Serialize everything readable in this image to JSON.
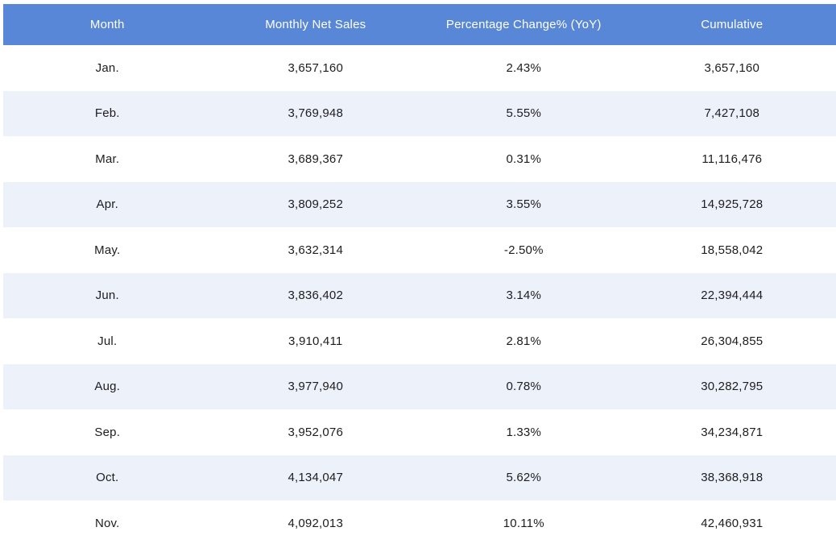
{
  "table": {
    "columns": [
      {
        "label": "Month"
      },
      {
        "label": "Monthly Net Sales"
      },
      {
        "label": "Percentage Change% (YoY)"
      },
      {
        "label": "Cumulative"
      }
    ],
    "rows": [
      {
        "month": "Jan.",
        "net_sales": "3,657,160",
        "pct_change": "2.43%",
        "cumulative": "3,657,160"
      },
      {
        "month": "Feb.",
        "net_sales": "3,769,948",
        "pct_change": "5.55%",
        "cumulative": "7,427,108"
      },
      {
        "month": "Mar.",
        "net_sales": "3,689,367",
        "pct_change": "0.31%",
        "cumulative": "11,116,476"
      },
      {
        "month": "Apr.",
        "net_sales": "3,809,252",
        "pct_change": "3.55%",
        "cumulative": "14,925,728"
      },
      {
        "month": "May.",
        "net_sales": "3,632,314",
        "pct_change": "-2.50%",
        "cumulative": "18,558,042"
      },
      {
        "month": "Jun.",
        "net_sales": "3,836,402",
        "pct_change": "3.14%",
        "cumulative": "22,394,444"
      },
      {
        "month": "Jul.",
        "net_sales": "3,910,411",
        "pct_change": "2.81%",
        "cumulative": "26,304,855"
      },
      {
        "month": "Aug.",
        "net_sales": "3,977,940",
        "pct_change": "0.78%",
        "cumulative": "30,282,795"
      },
      {
        "month": "Sep.",
        "net_sales": "3,952,076",
        "pct_change": "1.33%",
        "cumulative": "34,234,871"
      },
      {
        "month": "Oct.",
        "net_sales": "4,134,047",
        "pct_change": "5.62%",
        "cumulative": "38,368,918"
      },
      {
        "month": "Nov.",
        "net_sales": "4,092,013",
        "pct_change": "10.11%",
        "cumulative": "42,460,931"
      }
    ],
    "colors": {
      "header_bg": "#5987d8",
      "header_text": "#ffffff",
      "row_bg": "#ffffff",
      "row_alt_bg": "#edf1fa",
      "cell_text": "#1d1d1f"
    }
  },
  "chart_data": {
    "type": "table",
    "title": "",
    "columns": [
      "Month",
      "Monthly Net Sales",
      "Percentage Change% (YoY)",
      "Cumulative"
    ],
    "categories": [
      "Jan.",
      "Feb.",
      "Mar.",
      "Apr.",
      "May.",
      "Jun.",
      "Jul.",
      "Aug.",
      "Sep.",
      "Oct.",
      "Nov."
    ],
    "series": [
      {
        "name": "Monthly Net Sales",
        "values": [
          3657160,
          3769948,
          3689367,
          3809252,
          3632314,
          3836402,
          3910411,
          3977940,
          3952076,
          4134047,
          4092013
        ]
      },
      {
        "name": "Percentage Change% (YoY)",
        "values": [
          2.43,
          5.55,
          0.31,
          3.55,
          -2.5,
          3.14,
          2.81,
          0.78,
          1.33,
          5.62,
          10.11
        ]
      },
      {
        "name": "Cumulative",
        "values": [
          3657160,
          7427108,
          11116476,
          14925728,
          18558042,
          22394444,
          26304855,
          30282795,
          34234871,
          38368918,
          42460931
        ]
      }
    ],
    "layout_hints": {
      "striped_rows": true,
      "text_align": "center",
      "header_style": "solid-blue"
    }
  }
}
